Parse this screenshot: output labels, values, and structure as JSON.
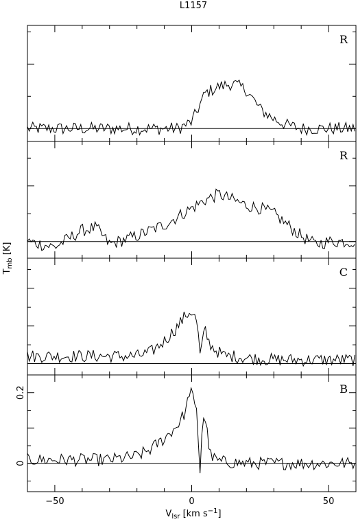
{
  "chart_data": {
    "type": "line",
    "title": "L1157",
    "xlabel_main": "V",
    "xlabel_sub": "lsr",
    "xlabel_rest": " [km s",
    "xlabel_sup": "−1",
    "xlabel_close": "]",
    "ylabel_main": "T",
    "ylabel_sub": "mb",
    "ylabel_rest": " [K]",
    "xlim": [
      -60,
      60
    ],
    "x_ticks": [
      -50,
      0,
      50
    ],
    "x_tick_labels": [
      "−50",
      "0",
      "50"
    ],
    "panels": [
      {
        "label": "R",
        "ylim": [
          -0.02,
          0.16
        ],
        "y_ticks": [],
        "baseline": 0,
        "profile": {
          "x": [
            -60,
            -40,
            -20,
            -5,
            0,
            5,
            10,
            15,
            20,
            25,
            30,
            35,
            40,
            45,
            50,
            60
          ],
          "y": [
            0,
            0,
            0,
            0,
            0.01,
            0.055,
            0.065,
            0.07,
            0.06,
            0.03,
            0.015,
            0.005,
            0,
            0,
            0,
            0
          ]
        }
      },
      {
        "label": "R",
        "ylim": [
          -0.03,
          0.18
        ],
        "y_ticks": [],
        "baseline": 0,
        "profile": {
          "x": [
            -60,
            -50,
            -40,
            -35,
            -30,
            -20,
            -10,
            0,
            5,
            10,
            15,
            20,
            25,
            30,
            35,
            40,
            45,
            50,
            60
          ],
          "y": [
            0,
            -0.01,
            0.02,
            0.025,
            -0.005,
            0.01,
            0.03,
            0.06,
            0.075,
            0.085,
            0.075,
            0.065,
            0.06,
            0.05,
            0.03,
            0.01,
            -0.005,
            0,
            0
          ]
        }
      },
      {
        "label": "C",
        "ylim": [
          -0.03,
          0.28
        ],
        "y_ticks": [],
        "baseline": 0,
        "profile": {
          "x": [
            -60,
            -20,
            -15,
            -10,
            -5,
            -2,
            0,
            2,
            3,
            4,
            5,
            6,
            8,
            12,
            15,
            20,
            30,
            40,
            60
          ],
          "y": [
            0.02,
            0.02,
            0.03,
            0.06,
            0.1,
            0.13,
            0.14,
            0.11,
            0.02,
            0.06,
            0.09,
            0.06,
            0.04,
            0.02,
            0.02,
            0.015,
            0.01,
            0.01,
            0.01
          ]
        }
      },
      {
        "label": "B",
        "ylim": [
          -0.08,
          0.25
        ],
        "y_ticks": [
          0,
          0.2
        ],
        "y_tick_labels": [
          "0",
          "0.2"
        ],
        "baseline": 0,
        "profile": {
          "x": [
            -60,
            -30,
            -20,
            -15,
            -10,
            -5,
            -2,
            -0.5,
            0,
            1,
            2,
            2.5,
            3,
            3.5,
            4,
            5,
            6,
            7,
            10,
            20,
            60
          ],
          "y": [
            0.01,
            0.01,
            0.02,
            0.04,
            0.07,
            0.11,
            0.15,
            0.22,
            0.2,
            0.16,
            0.14,
            0.05,
            -0.03,
            0.05,
            0.14,
            0.12,
            0.07,
            0.02,
            0.005,
            0,
            0
          ]
        }
      }
    ]
  }
}
